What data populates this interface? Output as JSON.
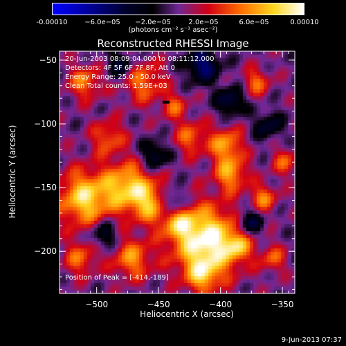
{
  "colorbar": {
    "ticks": [
      "-0.00010",
      "−6.0e−05",
      "−2.0e−05",
      "2.0e−05",
      "6.0e−05",
      "0.00010"
    ],
    "units": "(photons cm⁻² s⁻¹ asec⁻²)"
  },
  "chart_data": {
    "type": "heatmap",
    "title": "Reconstructed RHESSI Image",
    "xlabel": "Heliocentric X (arcsec)",
    "ylabel": "Heliocentric Y (arcsec)",
    "xlim": [
      -530,
      -340
    ],
    "ylim": [
      -233,
      -43
    ],
    "xticks": [
      "−500",
      "−450",
      "−400",
      "−350"
    ],
    "yticks": [
      "−50",
      "−100",
      "−150",
      "−200"
    ],
    "xtick_values": [
      -500,
      -450,
      -400,
      -350
    ],
    "ytick_values": [
      -50,
      -100,
      -150,
      -200
    ],
    "colorbar_range": [
      -0.0001,
      0.0001
    ],
    "peak": [
      -414,
      -189
    ],
    "annotations": {
      "time": "20-Jun-2003 08:09:04.000 to 08:11:12.000",
      "detectors": "Detectors: 4F 5F 6F 7F 8F, Att 0",
      "energy": "Energy Range: 25.0 - 50.0 keV",
      "clean": "Clean     Total counts: 1.59E+03",
      "peak": "Position of Peak = [-414,-189]"
    }
  },
  "footer": "9-Jun-2013 07:37"
}
